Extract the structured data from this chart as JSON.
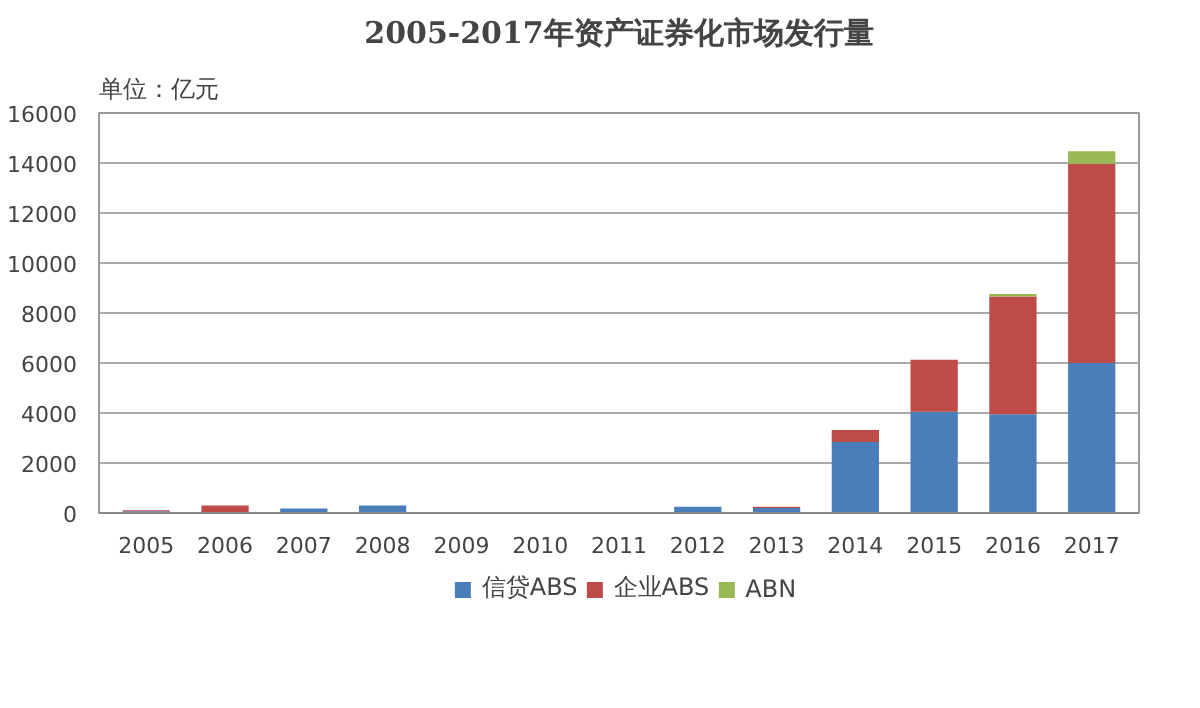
{
  "chart_data": {
    "type": "bar",
    "title": "2005-2017年资产证券化市场发行量",
    "ylabel": "单位：亿元",
    "categories": [
      "2005",
      "2006",
      "2007",
      "2008",
      "2009",
      "2010",
      "2011",
      "2012",
      "2013",
      "2014",
      "2015",
      "2016",
      "2017"
    ],
    "stacked": true,
    "ylim": [
      0,
      16000
    ],
    "yticks": [
      0,
      2000,
      4000,
      6000,
      8000,
      10000,
      12000,
      14000,
      16000
    ],
    "grid": "y",
    "legend": "bottom",
    "series": [
      {
        "name": "信贷ABS",
        "color": "#4a7ebb",
        "values": [
          70,
          0,
          180,
          300,
          0,
          0,
          10,
          250,
          200,
          2840,
          4050,
          3950,
          6000
        ]
      },
      {
        "name": "企业ABS",
        "color": "#be4b48",
        "values": [
          40,
          300,
          0,
          0,
          0,
          0,
          0,
          0,
          50,
          480,
          2080,
          4710,
          7970
        ]
      },
      {
        "name": "ABN",
        "color": "#98b954",
        "values": [
          0,
          0,
          0,
          0,
          0,
          0,
          0,
          0,
          0,
          0,
          0,
          100,
          500
        ]
      }
    ]
  }
}
